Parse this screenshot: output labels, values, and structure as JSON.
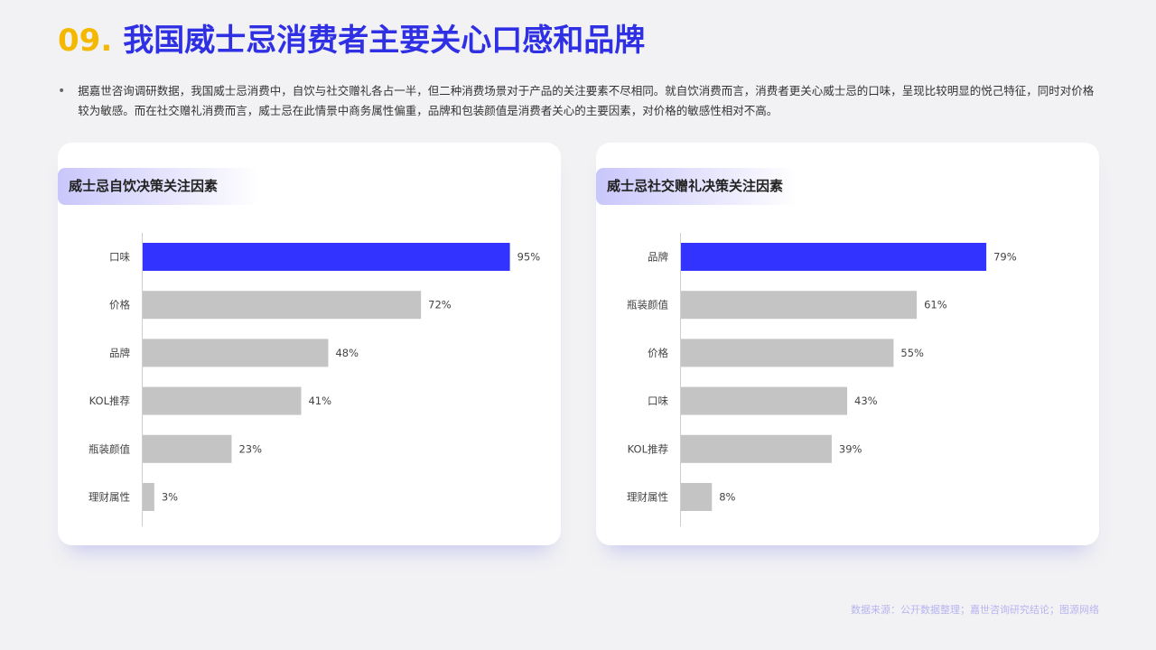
{
  "page": {
    "number": "09.",
    "title": "我国威士忌消费者主要关心口感和品牌",
    "bullet": "据嘉世咨询调研数据，我国威士忌消费中，自饮与社交赠礼各占一半，但二种消费场景对于产品的关注要素不尽相同。就自饮消费而言，消费者更关心威士忌的口味，呈现比较明显的悦己特征，同时对价格较为敏感。而在社交赠礼消费而言，威士忌在此情景中商务属性偏重，品牌和包装颜值是消费者关心的主要因素，对价格的敏感性相对不高。",
    "source": "数据来源：公开数据整理；嘉世咨询研究结论；图源网络"
  },
  "colors": {
    "highlight": "#3333ff",
    "bar": "#c4c4c4",
    "title_num": "#f5b800",
    "title_text": "#2f2fe4"
  },
  "chart_data": [
    {
      "type": "bar",
      "orientation": "horizontal",
      "title": "威士忌自饮决策关注因素",
      "categories": [
        "口味",
        "价格",
        "品牌",
        "KOL推荐",
        "瓶装颜值",
        "理财属性"
      ],
      "values": [
        95,
        72,
        48,
        41,
        23,
        3
      ],
      "labels": [
        "95%",
        "72%",
        "48%",
        "41%",
        "23%",
        "3%"
      ],
      "highlight_index": 0,
      "xlim": [
        0,
        100
      ],
      "grid": false
    },
    {
      "type": "bar",
      "orientation": "horizontal",
      "title": "威士忌社交赠礼决策关注因素",
      "categories": [
        "品牌",
        "瓶装颜值",
        "价格",
        "口味",
        "KOL推荐",
        "理财属性"
      ],
      "values": [
        79,
        61,
        55,
        43,
        39,
        8
      ],
      "labels": [
        "79%",
        "61%",
        "55%",
        "43%",
        "39%",
        "8%"
      ],
      "highlight_index": 0,
      "xlim": [
        0,
        100
      ],
      "grid": false
    }
  ]
}
